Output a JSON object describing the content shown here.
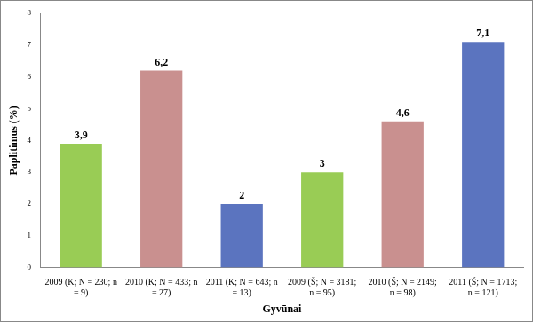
{
  "chart_data": {
    "type": "bar",
    "x_label": "Gyvūnai",
    "y_label": "Paplitimus (%)",
    "categories": [
      "2009 (K; N = 230; n = 9)",
      "2010 (K; N = 433; n = 27)",
      "2011 (K; N = 643; n = 13)",
      "2009 (Š; N = 3181; n = 95)",
      "2010 (Š; N = 2149; n = 98)",
      "2011 (Š; N = 1713; n = 121)"
    ],
    "values": [
      3.9,
      6.2,
      2,
      3,
      4.6,
      7.1
    ],
    "value_labels": [
      "3,9",
      "6,2",
      "2",
      "3",
      "4,6",
      "7,1"
    ],
    "colors": [
      "#99cc55",
      "#c9908f",
      "#5b74bf",
      "#99cc55",
      "#c9908f",
      "#5b74bf"
    ],
    "ylim": [
      0,
      8
    ],
    "yticks": [
      0,
      1,
      2,
      3,
      4,
      5,
      6,
      7,
      8
    ],
    "grid": false,
    "data_labels": true
  }
}
